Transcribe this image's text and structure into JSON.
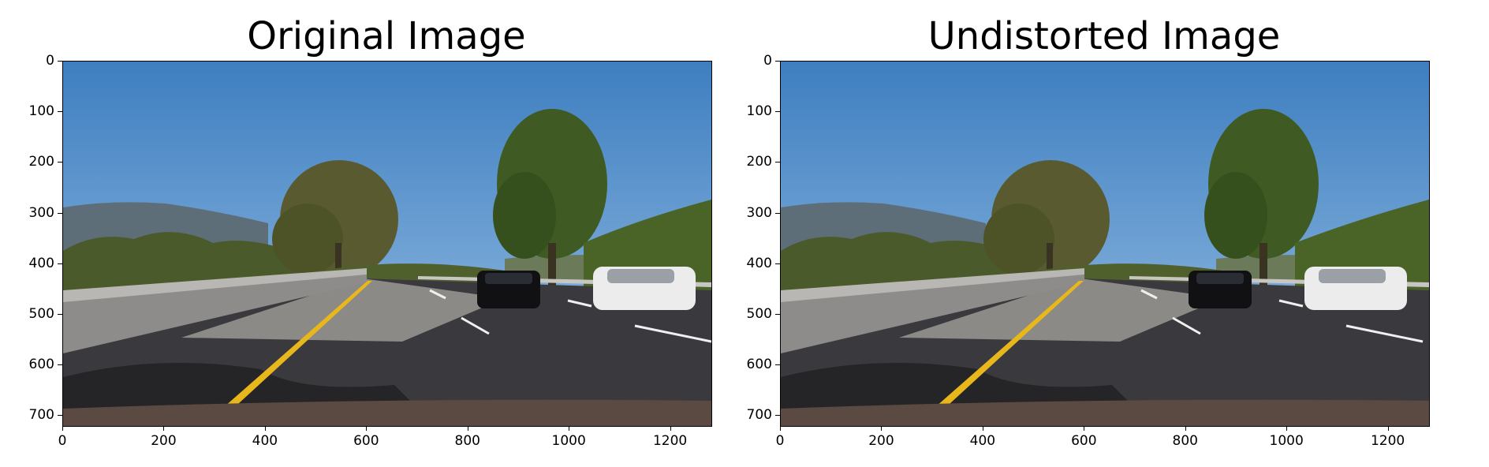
{
  "panels": [
    {
      "title": "Original Image",
      "image": {
        "description_icon": "photo-road-scene",
        "undistorted": false
      }
    },
    {
      "title": "Undistorted Image",
      "image": {
        "description_icon": "photo-road-scene",
        "undistorted": true
      }
    }
  ],
  "axes": {
    "x_ticks": [
      "0",
      "200",
      "400",
      "600",
      "800",
      "1000",
      "1200"
    ],
    "x_values": [
      0,
      200,
      400,
      600,
      800,
      1000,
      1200
    ],
    "x_range": [
      0,
      1280
    ],
    "y_ticks": [
      "0",
      "100",
      "200",
      "300",
      "400",
      "500",
      "600",
      "700"
    ],
    "y_values": [
      0,
      100,
      200,
      300,
      400,
      500,
      600,
      700
    ],
    "y_range": [
      0,
      720
    ]
  },
  "colors": {
    "sky_top": "#3e7ec0",
    "sky_bottom": "#9cc3e6",
    "road": "#3a3a3e",
    "lane_yellow": "#e8b71c",
    "foliage": "#4a5a2a"
  }
}
